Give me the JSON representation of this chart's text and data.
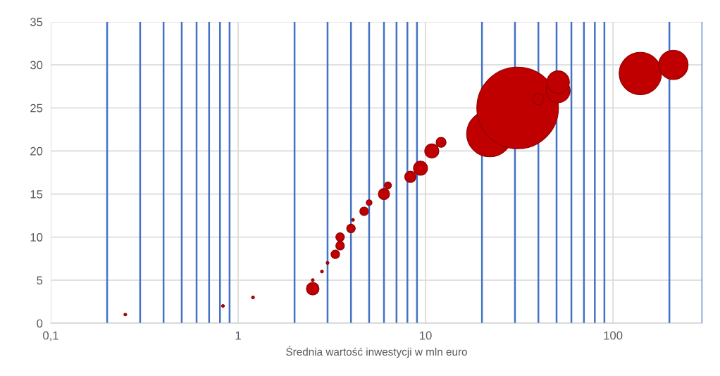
{
  "chart_data": {
    "type": "bubble",
    "xlabel": "Średnia wartość inwestycji w mln euro",
    "log": "x",
    "xlim": [
      0.1,
      300
    ],
    "xticks": [
      {
        "value": 0.1,
        "label": "0,1"
      },
      1,
      10,
      100
    ],
    "ylim": [
      0,
      35
    ],
    "yticks": [
      0,
      5,
      10,
      15,
      20,
      25,
      30,
      35
    ],
    "grid": true,
    "ref_lines": [
      {
        "axis": "x",
        "value": 0.2,
        "color": "#4472c4"
      },
      {
        "axis": "x",
        "value": 0.3,
        "color": "#4472c4"
      },
      {
        "axis": "x",
        "value": 0.4,
        "color": "#4472c4"
      },
      {
        "axis": "x",
        "value": 0.5,
        "color": "#4472c4"
      },
      {
        "axis": "x",
        "value": 0.6,
        "color": "#4472c4"
      },
      {
        "axis": "x",
        "value": 0.7,
        "color": "#4472c4"
      },
      {
        "axis": "x",
        "value": 0.8,
        "color": "#4472c4"
      },
      {
        "axis": "x",
        "value": 0.9,
        "color": "#4472c4"
      },
      {
        "axis": "x",
        "value": 2,
        "color": "#4472c4"
      },
      {
        "axis": "x",
        "value": 3,
        "color": "#4472c4"
      },
      {
        "axis": "x",
        "value": 4,
        "color": "#4472c4"
      },
      {
        "axis": "x",
        "value": 5,
        "color": "#4472c4"
      },
      {
        "axis": "x",
        "value": 6,
        "color": "#4472c4"
      },
      {
        "axis": "x",
        "value": 7,
        "color": "#4472c4"
      },
      {
        "axis": "x",
        "value": 8,
        "color": "#4472c4"
      },
      {
        "axis": "x",
        "value": 9,
        "color": "#4472c4"
      },
      {
        "axis": "x",
        "value": 20,
        "color": "#4472c4"
      },
      {
        "axis": "x",
        "value": 30,
        "color": "#4472c4"
      },
      {
        "axis": "x",
        "value": 40,
        "color": "#4472c4"
      },
      {
        "axis": "x",
        "value": 50,
        "color": "#4472c4"
      },
      {
        "axis": "x",
        "value": 60,
        "color": "#4472c4"
      },
      {
        "axis": "x",
        "value": 70,
        "color": "#4472c4"
      },
      {
        "axis": "x",
        "value": 80,
        "color": "#4472c4"
      },
      {
        "axis": "x",
        "value": 90,
        "color": "#4472c4"
      },
      {
        "axis": "x",
        "value": 200,
        "color": "#4472c4"
      },
      {
        "axis": "x",
        "value": 300,
        "color": "#4472c4"
      }
    ],
    "series": [
      {
        "color": "#c00000",
        "x": [
          0.25,
          0.83,
          1.2,
          2.5,
          2.5,
          2.8,
          3.0,
          3.3,
          3.5,
          3.5,
          4.0,
          4.1,
          4.7,
          5.0,
          6.0,
          6.3,
          8.3,
          9.4,
          10.8,
          12.1,
          22,
          31,
          40,
          51,
          51,
          140,
          210
        ],
        "values": [
          1,
          2,
          3,
          4,
          5,
          6,
          7,
          8,
          9,
          10,
          11,
          12,
          13,
          14,
          15,
          16,
          17,
          18,
          20,
          21,
          22,
          25,
          26,
          27,
          28,
          29,
          30
        ],
        "sizes": [
          0.0012,
          0.0012,
          0.0012,
          0.024,
          0.0012,
          0.0012,
          0.0012,
          0.011,
          0.011,
          0.011,
          0.011,
          0.0012,
          0.011,
          0.005,
          0.019,
          0.0074,
          0.019,
          0.03,
          0.03,
          0.015,
          0.32,
          1,
          0.019,
          0.086,
          0.076,
          0.27,
          0.13
        ]
      }
    ]
  }
}
